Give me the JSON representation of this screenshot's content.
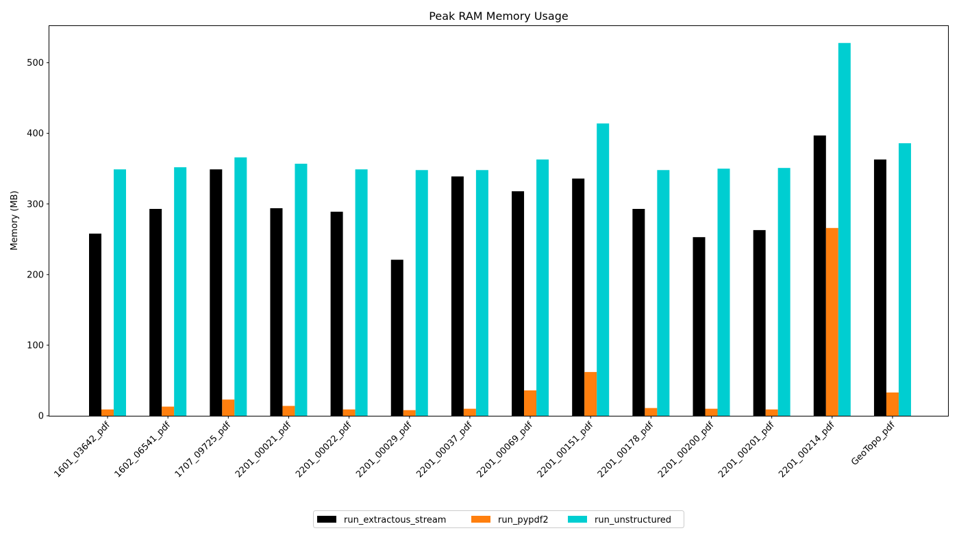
{
  "chart_data": {
    "type": "bar",
    "title": "Peak RAM Memory Usage",
    "xlabel": "",
    "ylabel": "Memory (MB)",
    "ylim": [
      0,
      552
    ],
    "yticks": [
      0,
      100,
      200,
      300,
      400,
      500
    ],
    "grid": false,
    "legend_placement": "bottom-center",
    "categories": [
      "1601_03642_pdf",
      "1602_06541_pdf",
      "1707_09725_pdf",
      "2201_00021_pdf",
      "2201_00022_pdf",
      "2201_00029_pdf",
      "2201_00037_pdf",
      "2201_00069_pdf",
      "2201_00151_pdf",
      "2201_00178_pdf",
      "2201_00200_pdf",
      "2201_00201_pdf",
      "2201_00214_pdf",
      "GeoTopo_pdf"
    ],
    "series": [
      {
        "name": "run_extractous_stream",
        "color": "#000000",
        "values": [
          258,
          293,
          349,
          294,
          289,
          221,
          339,
          318,
          336,
          293,
          253,
          263,
          397,
          363
        ]
      },
      {
        "name": "run_pypdf2",
        "color": "#ff7f0e",
        "values": [
          9,
          13,
          23,
          14,
          9,
          8,
          10,
          36,
          62,
          11,
          10,
          9,
          266,
          33
        ]
      },
      {
        "name": "run_unstructured",
        "color": "#00ced1",
        "values": [
          349,
          352,
          366,
          357,
          349,
          348,
          348,
          363,
          414,
          348,
          350,
          351,
          528,
          386
        ]
      }
    ]
  }
}
